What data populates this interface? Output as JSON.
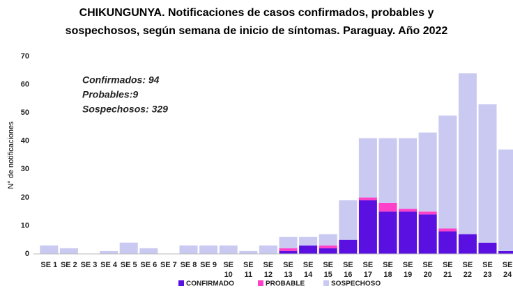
{
  "chart_data": {
    "type": "stacked_bar",
    "title": [
      "CHIKUNGUNYA. Notificaciones de casos confirmados, probables y",
      "sospechosos, según semana de inicio de síntomas. Paraguay.   Año 2022"
    ],
    "y_label": "N° de notificaciones",
    "annotations": [
      "Confirmados: 94",
      "Probables:9",
      "Sospechosos: 329"
    ],
    "categories": [
      "SE 1",
      "SE 2",
      "SE 3",
      "SE 4",
      "SE 5",
      "SE 6",
      "SE 7",
      "SE 8",
      "SE 9",
      "SE 10",
      "SE 11",
      "SE 12",
      "SE 13",
      "SE 14",
      "SE 15",
      "SE 16",
      "SE 17",
      "SE 18",
      "SE 19",
      "SE 20",
      "SE 21",
      "SE 22",
      "SE 23",
      "SE 24"
    ],
    "series": [
      {
        "name": "CONFIRMADO",
        "color": "#5a10e0",
        "values": [
          0,
          0,
          0,
          0,
          0,
          0,
          0,
          0,
          0,
          0,
          0,
          0,
          1,
          3,
          2,
          5,
          19,
          15,
          15,
          14,
          8,
          7,
          4,
          1
        ]
      },
      {
        "name": "PROBABLE",
        "color": "#ff40c8",
        "values": [
          0,
          0,
          0,
          0,
          0,
          0,
          0,
          0,
          0,
          0,
          0,
          0,
          1,
          0,
          1,
          0,
          1,
          3,
          1,
          1,
          1,
          0,
          0,
          0
        ]
      },
      {
        "name": "SOSPECHOSO",
        "color": "#c9c9f2",
        "values": [
          3,
          2,
          0,
          1,
          4,
          2,
          0,
          3,
          3,
          3,
          1,
          3,
          4,
          3,
          4,
          14,
          21,
          23,
          25,
          28,
          40,
          57,
          49,
          36
        ]
      }
    ],
    "ylim": [
      0,
      70
    ],
    "yticks": [
      0,
      10,
      20,
      30,
      40,
      50,
      60,
      70
    ],
    "grid": false,
    "legend": "bottom"
  }
}
